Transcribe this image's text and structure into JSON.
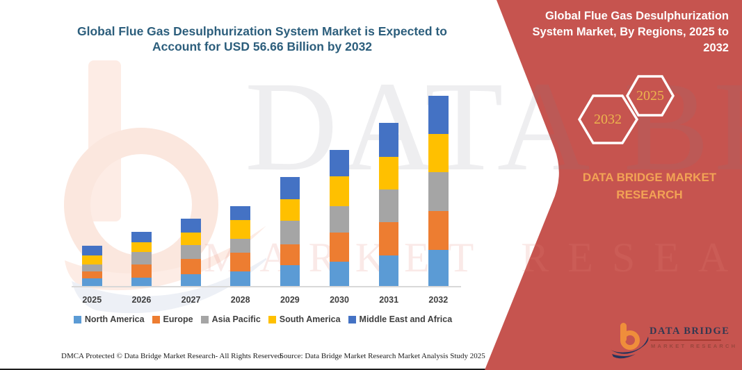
{
  "colors": {
    "panel_red": "#c6544f",
    "headline_blue": "#2c5e7c",
    "axis_text": "#3f3f3f",
    "axis_line": "#d8d8d8",
    "hex_year_gold": "#ecb54d",
    "brand_orange": "#f2a355",
    "logo_orange": "#ef8e3b",
    "logo_navy": "#27345c",
    "logo_rule_red": "#a83a31"
  },
  "chart": {
    "title_lines": [
      "Global Flue Gas Desulphurization System Market is Expected to",
      "Account for USD 56.66 Billion by 2032"
    ]
  },
  "chart_data": {
    "type": "bar",
    "stacked": true,
    "title": "Global Flue Gas Desulphurization System Market is Expected to Account for USD 56.66 Billion by 2032",
    "unit": "USD Billion",
    "categories": [
      "2025",
      "2026",
      "2027",
      "2028",
      "2029",
      "2030",
      "2031",
      "2032"
    ],
    "series": [
      {
        "name": "North America",
        "color": "#5b9bd5",
        "values": [
          2.4,
          2.6,
          3.8,
          4.5,
          6.3,
          7.4,
          9.3,
          11.0
        ]
      },
      {
        "name": "Europe",
        "color": "#ed7d31",
        "values": [
          2.1,
          4.0,
          4.5,
          5.6,
          6.2,
          8.6,
          9.9,
          11.5
        ]
      },
      {
        "name": "Asia Pacific",
        "color": "#a5a5a5",
        "values": [
          2.2,
          3.8,
          4.1,
          4.1,
          7.1,
          7.9,
          9.7,
          11.5
        ]
      },
      {
        "name": "South America",
        "color": "#ffc000",
        "values": [
          2.6,
          2.9,
          3.8,
          5.5,
          6.3,
          8.9,
          9.7,
          11.3
        ]
      },
      {
        "name": "Middle East and Africa",
        "color": "#4472c4",
        "values": [
          2.9,
          2.9,
          4.1,
          4.3,
          6.7,
          7.8,
          10.0,
          11.36
        ]
      }
    ],
    "totals": [
      12.2,
      16.2,
      20.3,
      24.0,
      32.6,
      40.6,
      48.6,
      56.66
    ],
    "ylim": [
      0,
      56.66
    ],
    "grid": false,
    "y_axis_visible": false,
    "legend_position": "bottom"
  },
  "panel": {
    "title_lines": [
      "Global Flue Gas Desulphurization",
      "System Market, By Regions, 2025 to",
      "2032"
    ],
    "hexagons": [
      {
        "year": "2032"
      },
      {
        "year": "2025"
      }
    ],
    "brand_text": "DATA BRIDGE MARKET RESEARCH"
  },
  "logo": {
    "name": "DATA BRIDGE",
    "sub": "MARKET RESEARCH"
  },
  "watermark": {
    "line1": "DATA BRI",
    "line2": "MARKET RESEARCH"
  },
  "footer": {
    "left": "DMCA Protected © Data Bridge Market Research-  All Rights Reserved.",
    "right": "Source: Data Bridge Market Research  Market Analysis Study 2025"
  }
}
